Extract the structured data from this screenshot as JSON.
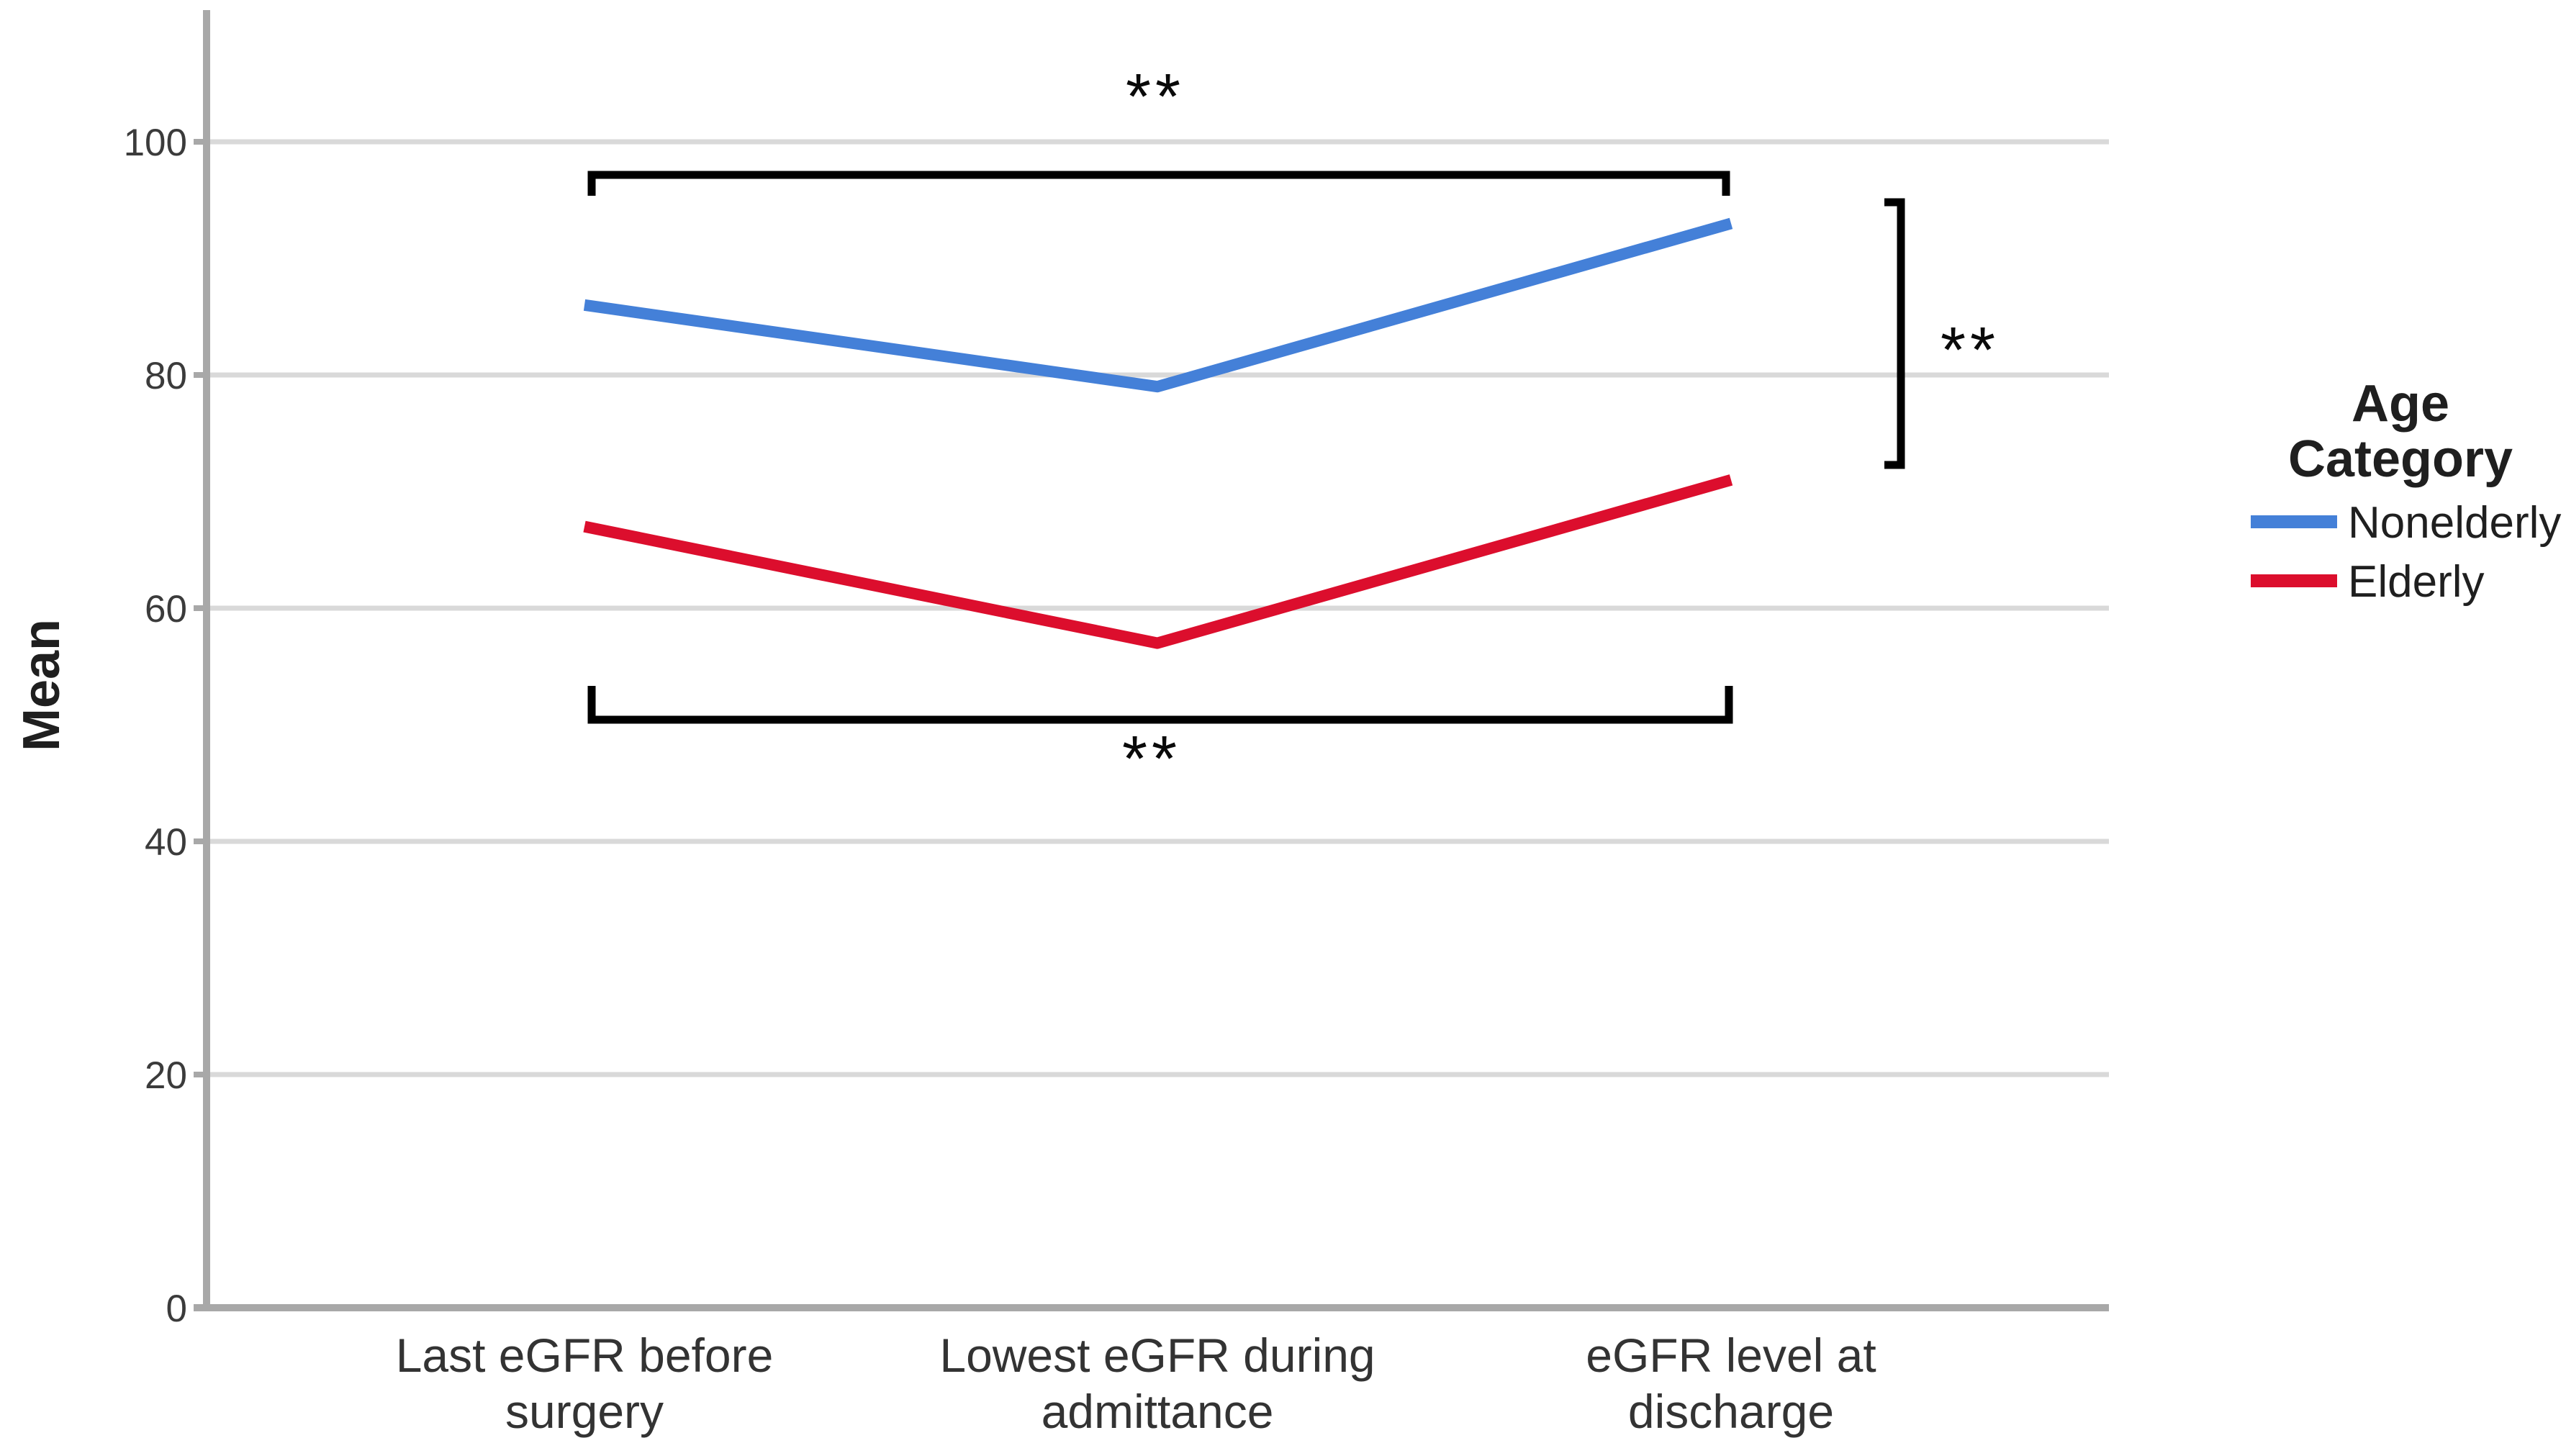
{
  "page": {
    "background": "#FFFFFF"
  },
  "chart_data": {
    "type": "line",
    "title": "",
    "xlabel": "",
    "ylabel": "Mean",
    "categories": [
      "Last eGFR before surgery",
      "Lowest eGFR during admittance",
      "eGFR level at discharge"
    ],
    "category_label_lines": [
      [
        "Last eGFR before",
        "surgery"
      ],
      [
        "Lowest eGFR during",
        "admittance"
      ],
      [
        "eGFR level at",
        "discharge"
      ]
    ],
    "series": [
      {
        "name": "Nonelderly",
        "color": "#4480D8",
        "values": [
          86,
          79,
          93
        ]
      },
      {
        "name": "Elderly",
        "color": "#DC0E2D",
        "values": [
          67,
          57,
          71
        ]
      }
    ],
    "ylim": [
      0,
      110
    ],
    "yticks": [
      0,
      20,
      40,
      60,
      80,
      100
    ],
    "grid": "horizontal",
    "legend_position": "right",
    "legend": {
      "title_lines": [
        "Age",
        "Category"
      ],
      "items": [
        "Nonelderly",
        "Elderly"
      ]
    },
    "annotations": [
      {
        "label": "**",
        "position": "top",
        "type": "significance-bracket"
      },
      {
        "label": "**",
        "position": "bottom",
        "type": "significance-bracket"
      },
      {
        "label": "**",
        "position": "right",
        "type": "significance-bracket"
      }
    ]
  },
  "colors": {
    "gridline": "#D9D9D9",
    "axis": "#A8A8A8",
    "bracket": "#000000",
    "tick_text": "#3B3B3B",
    "label_text": "#333333",
    "legend_text": "#1F1F1F",
    "annotation_text": "#0A0A0A"
  }
}
